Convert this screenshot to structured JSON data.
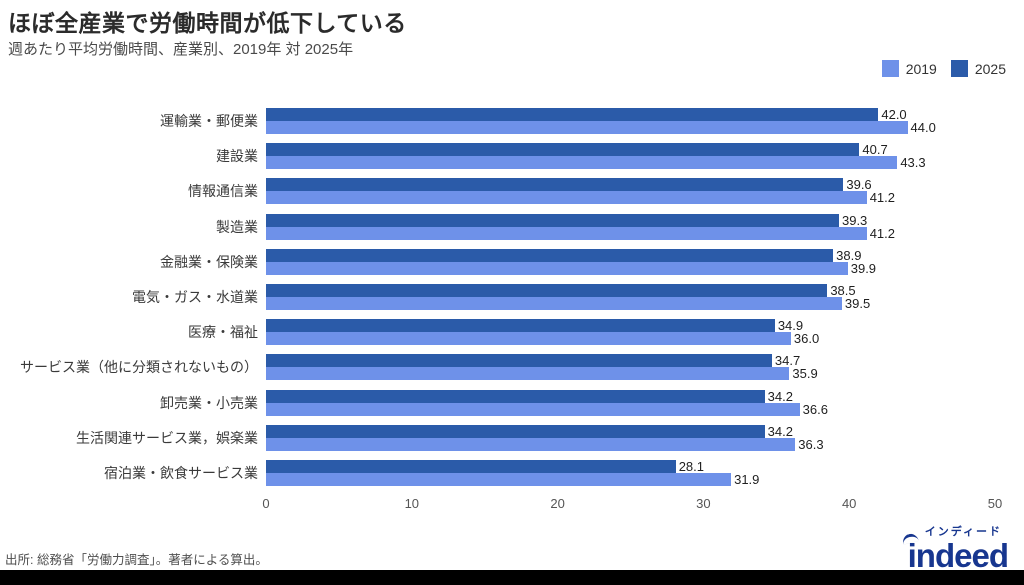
{
  "header": {
    "title": "ほぼ全産業で労働時間が低下している",
    "subtitle": "週あたり平均労働時間、産業別、2019年 対 2025年"
  },
  "legend": [
    {
      "label": "2019",
      "color": "#6e91e9"
    },
    {
      "label": "2025",
      "color": "#2b5ba9"
    }
  ],
  "chart_data": {
    "type": "bar",
    "orientation": "horizontal",
    "title": "ほぼ全産業で労働時間が低下している",
    "subtitle": "週あたり平均労働時間、産業別、2019年 対 2025年",
    "categories": [
      "運輸業・郵便業",
      "建設業",
      "情報通信業",
      "製造業",
      "金融業・保険業",
      "電気・ガス・水道業",
      "医療・福祉",
      "サービス業（他に分類されないもの）",
      "卸売業・小売業",
      "生活関連サービス業，娯楽業",
      "宿泊業・飲食サービス業"
    ],
    "series": [
      {
        "name": "2025",
        "color": "#2b5ba9",
        "values": [
          42.0,
          40.7,
          39.6,
          39.3,
          38.9,
          38.5,
          34.9,
          34.7,
          34.2,
          34.2,
          28.1
        ]
      },
      {
        "name": "2019",
        "color": "#6e91e9",
        "values": [
          44.0,
          43.3,
          41.2,
          41.2,
          39.9,
          39.5,
          36.0,
          35.9,
          36.6,
          36.3,
          31.9
        ]
      }
    ],
    "xlim": [
      0,
      50
    ],
    "xticks": [
      0,
      10,
      20,
      30,
      40,
      50
    ],
    "xlabel": "",
    "ylabel": "",
    "grid": false,
    "value_labels": true,
    "value_label_format": "0.0",
    "legend_position": "top-right"
  },
  "footer": {
    "source": "出所: 総務省「労働力調査」。著者による算出。",
    "logo": {
      "brand": "indeed",
      "kana": "インディード",
      "color": "#17368f"
    }
  }
}
